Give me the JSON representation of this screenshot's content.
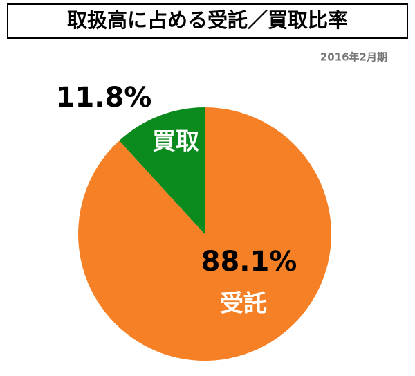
{
  "chart_data": {
    "type": "pie",
    "title": "取扱高に占める受託／買取比率",
    "subtitle": "2016年2月期",
    "categories": [
      "受託",
      "買取"
    ],
    "values": [
      88.1,
      11.8
    ],
    "value_labels": [
      "88.1%",
      "11.8%"
    ],
    "colors": [
      "#f58025",
      "#0b8a1e"
    ]
  }
}
